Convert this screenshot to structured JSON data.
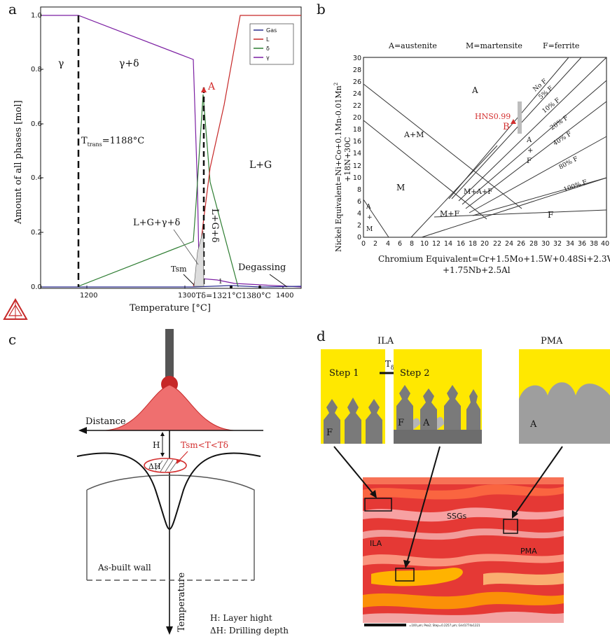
{
  "panel_letters": {
    "a": "a",
    "b": "b",
    "c": "c",
    "d": "d"
  },
  "panel_a": {
    "ylabel": "Amount of all phases [mol]",
    "xlabel": "Temperature [°C]",
    "yticks": [
      "0.0",
      "0.2",
      "0.4",
      "0.6",
      "0.8",
      "1.0"
    ],
    "xticks": [
      "1200",
      "1300",
      "1400"
    ],
    "legend": [
      "Gas",
      "L",
      "δ",
      "γ"
    ],
    "legend_colors": [
      "#2b2f8f",
      "#c62828",
      "#2e7d32",
      "#7b1fa2"
    ],
    "labels": {
      "gamma": "γ",
      "gamma_delta": "γ+δ",
      "ttrans_t": "T",
      "ttrans_sub": "trans",
      "ttrans_val": "=1188°C",
      "lg": "L+G",
      "l_g_delta": "L+G+δ",
      "l_g_gamma_delta": "L+G+γ+δ",
      "point_a": "A",
      "tsm": "Tsm",
      "tdelta": "Tδ=1321°C",
      "t1380": "1380°C",
      "degassing": "Degassing",
      "one": "1"
    }
  },
  "panel_b": {
    "header": {
      "a": "A=austenite",
      "m": "M=martensite",
      "f": "F=ferrite"
    },
    "yaxis_line1": "Nickel Equivalent=Ni+Co+0.1Mn-0.01Mn",
    "yaxis_sup": "2",
    "yaxis_line2": "+18N+30C",
    "xaxis_line1": "Chromium Equivalent=Cr+1.5Mo+1.5W+0.48Si+2.3V",
    "xaxis_line2": "+1.75Nb+2.5Al",
    "xticks": [
      "0",
      "2",
      "4",
      "6",
      "8",
      "10",
      "12",
      "14",
      "16",
      "18",
      "20",
      "22",
      "24",
      "26",
      "28",
      "30",
      "32",
      "34",
      "36",
      "38",
      "40"
    ],
    "yticks": [
      "0",
      "2",
      "4",
      "6",
      "8",
      "10",
      "12",
      "14",
      "16",
      "18",
      "20",
      "22",
      "24",
      "26",
      "28",
      "30"
    ],
    "regions": {
      "A": "A",
      "AM": "A+M",
      "M": "M",
      "MF": "M+F",
      "MAF": "M+A+F",
      "F": "F",
      "AF_a": "A",
      "AF_plus": "+",
      "AF_f": "F",
      "AM_small_a": "A",
      "AM_small_plus": "+",
      "AM_small_m": "M"
    },
    "ferrite_lines": [
      "No F",
      "5% F",
      "10% F",
      "20% F",
      "40% F",
      "80% F",
      "100% F"
    ],
    "hns_label": "HNS0.99",
    "point_b": "B"
  },
  "panel_c": {
    "distance": "Distance",
    "h": "H",
    "tsm_range": "Tsm<T<Tδ",
    "dh": "ΔH",
    "asbuilt": "As-built wall",
    "temperature": "Temperature",
    "legend_h": "H: Layer hight",
    "legend_dh": "ΔH: Drilling depth"
  },
  "panel_d": {
    "ila_title": "ILA",
    "pma_title": "PMA",
    "step1": "Step 1",
    "step2": "Step 2",
    "tdelta_t": "T",
    "tdelta_sub": "δ",
    "f_label": "F",
    "a_label": "A",
    "pma_a": "A",
    "map_ssgs": "SSGs",
    "map_ila": "ILA",
    "map_pma": "PMA",
    "scale_text": "=100 µm; Pea2; Step=0.2257 µm; Grid1774x1221",
    "colors": {
      "yellow": "#ffe800",
      "grey": "#9e9e9e",
      "dark_grey": "#6d6d6d"
    }
  }
}
